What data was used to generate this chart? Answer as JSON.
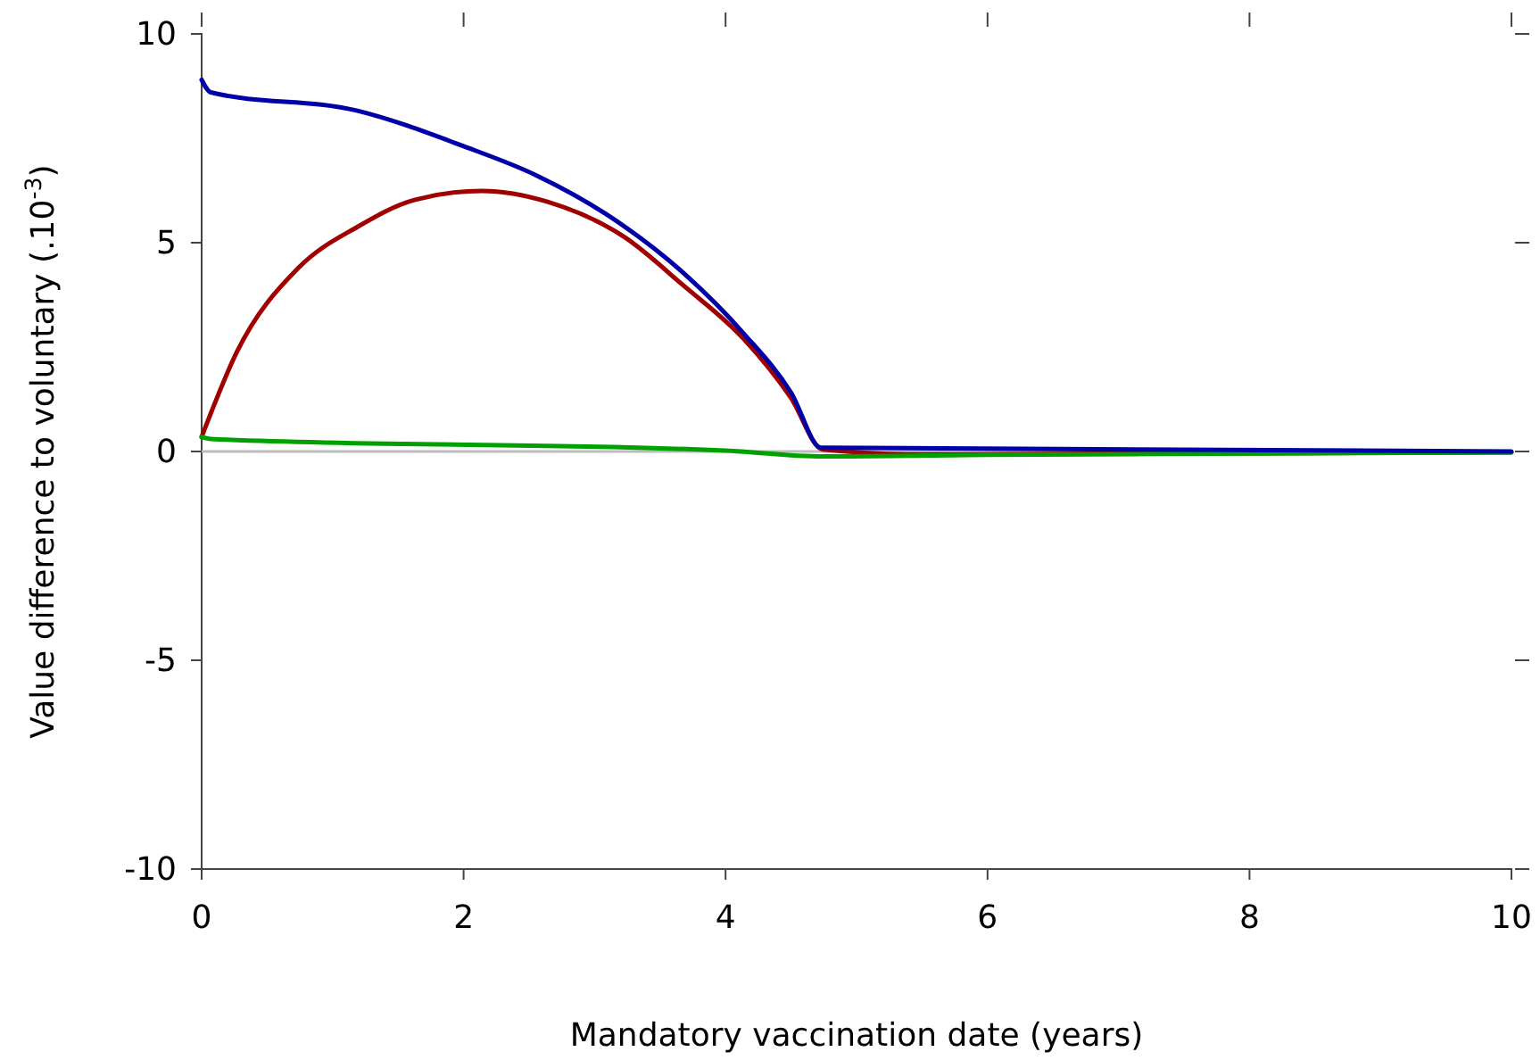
{
  "chart_data": {
    "type": "line",
    "xlabel": "Mandatory vaccination date (years)",
    "ylabel": "Value difference to voluntary (.10$^{-3}$)",
    "xlim": [
      0,
      10
    ],
    "ylim": [
      -10,
      10
    ],
    "xticks": [
      0,
      2,
      4,
      6,
      8,
      10
    ],
    "yticks": [
      -10,
      -5,
      0,
      5,
      10
    ],
    "grid": false,
    "line_style": "solid",
    "marker": "none",
    "ref_lines": [
      {
        "axis": "y",
        "value": 0,
        "color": "#bbbbbb"
      }
    ],
    "series": [
      {
        "color": "#a00000",
        "x": [
          0,
          0.27,
          0.74,
          1.19,
          1.63,
          2.14,
          2.64,
          3.23,
          3.68,
          4.14,
          4.5,
          4.74,
          5.5,
          7.1,
          10
        ],
        "values": [
          0.35,
          2.39,
          4.4,
          5.38,
          6.03,
          6.24,
          5.98,
          5.13,
          3.97,
          2.69,
          1.28,
          0.05,
          -0.07,
          -0.05,
          -0.02
        ]
      },
      {
        "color": "#00a000",
        "x": [
          0,
          0.07,
          4.0,
          4.74,
          6,
          8.2,
          10
        ],
        "values": [
          0.35,
          0.3,
          0.02,
          -0.12,
          -0.08,
          -0.05,
          -0.02
        ]
      },
      {
        "color": "#0000a8",
        "x": [
          0,
          0.07,
          1.19,
          2.0,
          2.55,
          3.09,
          3.68,
          4.14,
          4.5,
          4.73,
          10
        ],
        "values": [
          8.9,
          8.6,
          8.16,
          7.31,
          6.62,
          5.68,
          4.27,
          2.82,
          1.41,
          0.09,
          0
        ]
      }
    ]
  }
}
